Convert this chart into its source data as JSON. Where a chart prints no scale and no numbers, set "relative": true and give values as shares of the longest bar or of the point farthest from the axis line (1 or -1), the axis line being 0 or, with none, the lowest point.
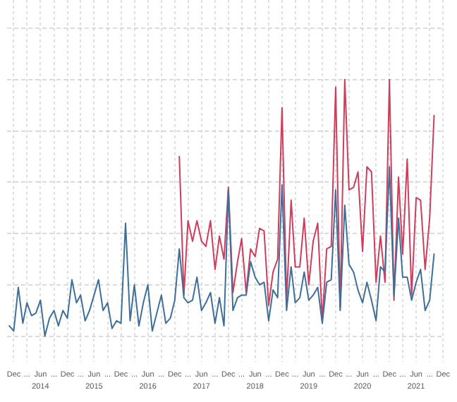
{
  "chart_data": {
    "type": "line",
    "relative": true,
    "grid": true,
    "x": [
      "2013-11",
      "2013-12",
      "2014-01",
      "2014-02",
      "2014-03",
      "2014-04",
      "2014-05",
      "2014-06",
      "2014-07",
      "2014-08",
      "2014-09",
      "2014-10",
      "2014-11",
      "2014-12",
      "2015-01",
      "2015-02",
      "2015-03",
      "2015-04",
      "2015-05",
      "2015-06",
      "2015-07",
      "2015-08",
      "2015-09",
      "2015-10",
      "2015-11",
      "2015-12",
      "2016-01",
      "2016-02",
      "2016-03",
      "2016-04",
      "2016-05",
      "2016-06",
      "2016-07",
      "2016-08",
      "2016-09",
      "2016-10",
      "2016-11",
      "2016-12",
      "2017-01",
      "2017-02",
      "2017-03",
      "2017-04",
      "2017-05",
      "2017-06",
      "2017-07",
      "2017-08",
      "2017-09",
      "2017-10",
      "2017-11",
      "2017-12",
      "2018-01",
      "2018-02",
      "2018-03",
      "2018-04",
      "2018-05",
      "2018-06",
      "2018-07",
      "2018-08",
      "2018-09",
      "2018-10",
      "2018-11",
      "2018-12",
      "2019-01",
      "2019-02",
      "2019-03",
      "2019-04",
      "2019-05",
      "2019-06",
      "2019-07",
      "2019-08",
      "2019-09",
      "2019-10",
      "2019-11",
      "2019-12",
      "2020-01",
      "2020-02",
      "2020-03",
      "2020-04",
      "2020-05",
      "2020-06",
      "2020-07",
      "2020-08",
      "2020-09",
      "2020-10",
      "2020-11",
      "2020-12",
      "2021-01",
      "2021-02",
      "2021-03",
      "2021-04",
      "2021-05",
      "2021-06",
      "2021-07",
      "2021-08",
      "2021-09",
      "2021-10"
    ],
    "xlim": [
      "2013-10-15",
      "2021-12"
    ],
    "xticks": [
      {
        "value": "2013-12",
        "label": "Dec"
      },
      {
        "value": "2014-03",
        "label": "..."
      },
      {
        "value": "2014-06",
        "label": "Jun\n2014"
      },
      {
        "value": "2014-09",
        "label": "..."
      },
      {
        "value": "2014-12",
        "label": "Dec"
      },
      {
        "value": "2015-03",
        "label": "..."
      },
      {
        "value": "2015-06",
        "label": "Jun\n2015"
      },
      {
        "value": "2015-09",
        "label": "..."
      },
      {
        "value": "2015-12",
        "label": "Dec"
      },
      {
        "value": "2016-03",
        "label": "..."
      },
      {
        "value": "2016-06",
        "label": "Jun\n2016"
      },
      {
        "value": "2016-09",
        "label": "..."
      },
      {
        "value": "2016-12",
        "label": "Dec"
      },
      {
        "value": "2017-03",
        "label": "..."
      },
      {
        "value": "2017-06",
        "label": "Jun\n2017"
      },
      {
        "value": "2017-09",
        "label": "..."
      },
      {
        "value": "2017-12",
        "label": "Dec"
      },
      {
        "value": "2018-03",
        "label": "..."
      },
      {
        "value": "2018-06",
        "label": "Jun\n2018"
      },
      {
        "value": "2018-09",
        "label": "..."
      },
      {
        "value": "2018-12",
        "label": "Dec"
      },
      {
        "value": "2019-03",
        "label": "..."
      },
      {
        "value": "2019-06",
        "label": "Jun\n2019"
      },
      {
        "value": "2019-09",
        "label": "..."
      },
      {
        "value": "2019-12",
        "label": "Dec"
      },
      {
        "value": "2020-03",
        "label": "..."
      },
      {
        "value": "2020-06",
        "label": "Jun\n2020"
      },
      {
        "value": "2020-09",
        "label": "..."
      },
      {
        "value": "2020-12",
        "label": "Dec"
      },
      {
        "value": "2021-03",
        "label": "..."
      },
      {
        "value": "2021-06",
        "label": "Jun\n2021"
      },
      {
        "value": "2021-09",
        "label": "..."
      },
      {
        "value": "2021-12",
        "label": "Dec"
      }
    ],
    "series": [
      {
        "color": "#3d6f9b",
        "values": [
          0.04,
          0.02,
          0.19,
          0.05,
          0.13,
          0.08,
          0.09,
          0.14,
          0,
          0.07,
          0.1,
          0.04,
          0.1,
          0.07,
          0.22,
          0.13,
          0.16,
          0.06,
          0.1,
          0.16,
          0.22,
          0.1,
          0.13,
          0.03,
          0.06,
          0.05,
          0.44,
          0.06,
          0.2,
          0.04,
          0.13,
          0.2,
          0.02,
          0.09,
          0.16,
          0.05,
          0.07,
          0.14,
          0.34,
          0.15,
          0.13,
          0.14,
          0.23,
          0.1,
          0.13,
          0.17,
          0.05,
          0.15,
          0.04,
          0.57,
          0.1,
          0.15,
          0.16,
          0.16,
          0.29,
          0.23,
          0.2,
          0.21,
          0.06,
          0.18,
          0.15,
          0.59,
          0.1,
          0.27,
          0.13,
          0.15,
          0.25,
          0.14,
          0.16,
          0.19,
          0.05,
          0.21,
          0.22,
          0.57,
          0.1,
          0.51,
          0.28,
          0.25,
          0.18,
          0.13,
          0.21,
          0.14,
          0.06,
          0.27,
          0.25,
          0.66,
          0.16,
          0.46,
          0.23,
          0.23,
          0.14,
          0.21,
          0.26,
          0.1,
          0.14,
          0.32
        ]
      },
      {
        "color": "#cf3d5c",
        "values": [
          null,
          null,
          null,
          null,
          null,
          null,
          null,
          null,
          null,
          null,
          null,
          null,
          null,
          null,
          null,
          null,
          null,
          null,
          null,
          null,
          null,
          null,
          null,
          null,
          null,
          null,
          null,
          null,
          null,
          null,
          null,
          null,
          null,
          null,
          null,
          null,
          null,
          null,
          0.7,
          0.16,
          0.45,
          0.37,
          0.45,
          0.37,
          0.35,
          0.45,
          0.26,
          0.39,
          0.3,
          0.58,
          0.17,
          0.29,
          0.38,
          0.17,
          0.34,
          0.31,
          0.42,
          0.41,
          0.12,
          0.25,
          0.3,
          0.89,
          0.14,
          0.53,
          0.27,
          0.27,
          0.46,
          0.2,
          0.37,
          0.44,
          0.06,
          0.34,
          0.35,
          0.97,
          0.11,
          1,
          0.57,
          0.58,
          0.64,
          0.33,
          0.66,
          0.64,
          0.21,
          0.39,
          0.21,
          1,
          0.14,
          0.62,
          0.32,
          0.69,
          0.16,
          0.54,
          0.53,
          0.26,
          0.46,
          0.86
        ]
      }
    ]
  }
}
